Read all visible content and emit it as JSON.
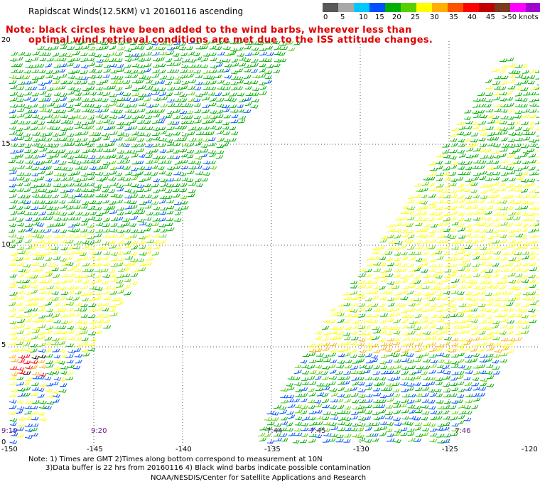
{
  "title": "Rapidscat Winds(12.5KM) v1 20160116 ascending",
  "note": {
    "line1": "Note: black circles have been added to the wind barbs, wherever less than",
    "line2": "optimal wind retrieval conditions are met due to the ISS attitude changes."
  },
  "color_scale": {
    "labels": [
      "0",
      "5",
      "10",
      "15",
      "20",
      "25",
      "30",
      "35",
      "40",
      "45",
      ">50 knots"
    ],
    "colors": [
      "#585858",
      "#a8a8a8",
      "#00c8ff",
      "#0050ff",
      "#00b000",
      "#58d000",
      "#ffff00",
      "#ffb000",
      "#ff5000",
      "#ff0000",
      "#c00000",
      "#7a3a20",
      "#ff00ff",
      "#a000d0",
      "#502080"
    ]
  },
  "map": {
    "y_labels": [
      "20",
      "15",
      "10",
      "5",
      "0"
    ],
    "x_labels": [
      "-150",
      "-145",
      "-140",
      "-135",
      "-130",
      "-125",
      "-120"
    ],
    "pass_times": [
      "9:19",
      "9:20",
      "7:44",
      "7:45",
      "7:46"
    ],
    "lat_range": [
      0,
      20
    ],
    "lon_range": [
      -150,
      -120
    ]
  },
  "footer": {
    "line1": "Note: 1) Times are GMT 2)Times along bottom correspond to measurement at 10N",
    "line2": "3)Data buffer is 22 hrs from 20160116 4) Black wind barbs indicate possible contamination",
    "line3": "NOAA/NESDIS/Center for Satellite Applications and Research"
  }
}
